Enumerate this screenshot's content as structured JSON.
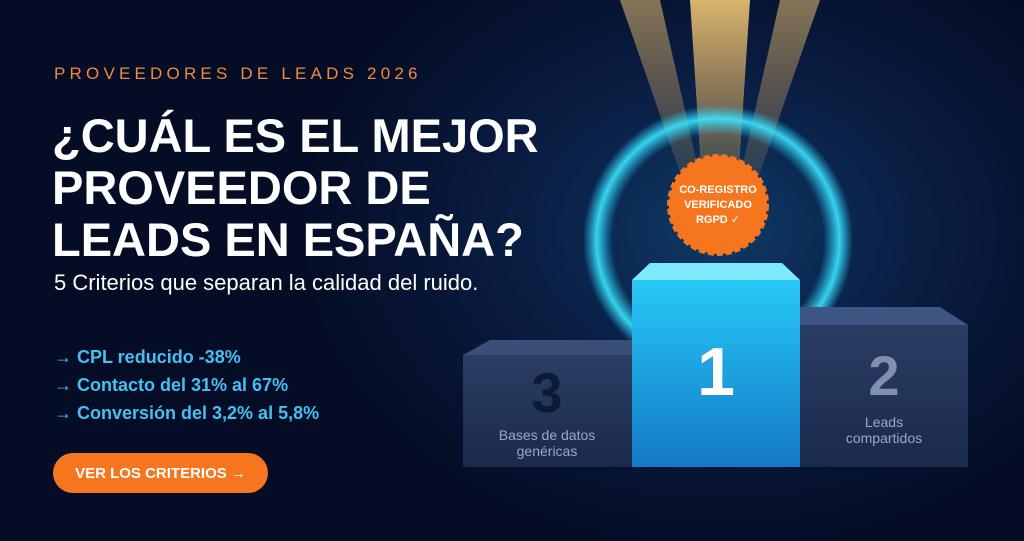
{
  "eyebrow": "PROVEEDORES DE LEADS 2026",
  "headline": [
    "¿CUÁL ES EL MEJOR",
    "PROVEEDOR DE",
    "LEADS EN ESPAÑA?"
  ],
  "subtitle": "5 Criterios que separan la calidad del ruido.",
  "bullets": [
    "→ CPL reducido -38%",
    "→ Contacto del 31% al 67%",
    "→ Conversión del 3,2% al 5,8%"
  ],
  "cta": "VER LOS CRITERIOS →",
  "badge": [
    "CO-REGISTRO",
    "VERIFICADO",
    "RGPD ✓"
  ],
  "podium": [
    {
      "rank": "3",
      "label": [
        "Bases de datos",
        "genéricas"
      ]
    },
    {
      "rank": "1"
    },
    {
      "rank": "2",
      "label": [
        "Leads",
        "compartidos"
      ]
    }
  ]
}
